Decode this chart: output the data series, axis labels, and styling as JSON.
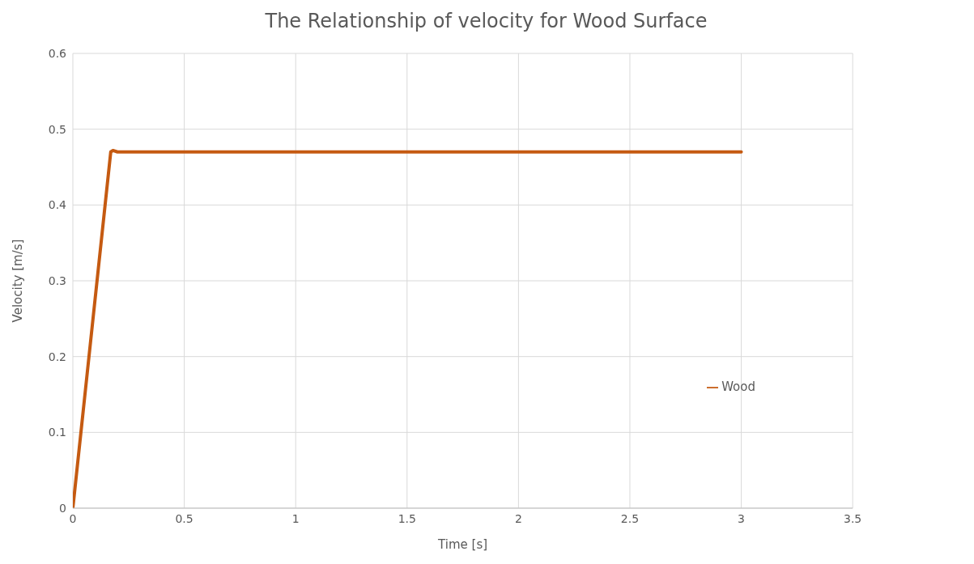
{
  "chart_data": {
    "type": "line",
    "title": "The Relationship of velocity for Wood Surface",
    "xlabel": "Time [s]",
    "ylabel": "Velocity [m/s]",
    "x": [
      0,
      0.17,
      0.18,
      0.2,
      3
    ],
    "series": [
      {
        "name": "Wood",
        "color": "#c55a11",
        "values": [
          0,
          0.47,
          0.472,
          0.47,
          0.47
        ]
      }
    ],
    "xlim": [
      0,
      3.5
    ],
    "xticks": [
      0,
      0.5,
      1,
      1.5,
      2,
      2.5,
      3,
      3.5
    ],
    "ylim": [
      0,
      0.6
    ],
    "yticks": [
      0,
      0.1,
      0.2,
      0.3,
      0.4,
      0.5,
      0.6
    ],
    "grid": true,
    "legend": "right",
    "marker": "none",
    "line_style": "solid"
  }
}
